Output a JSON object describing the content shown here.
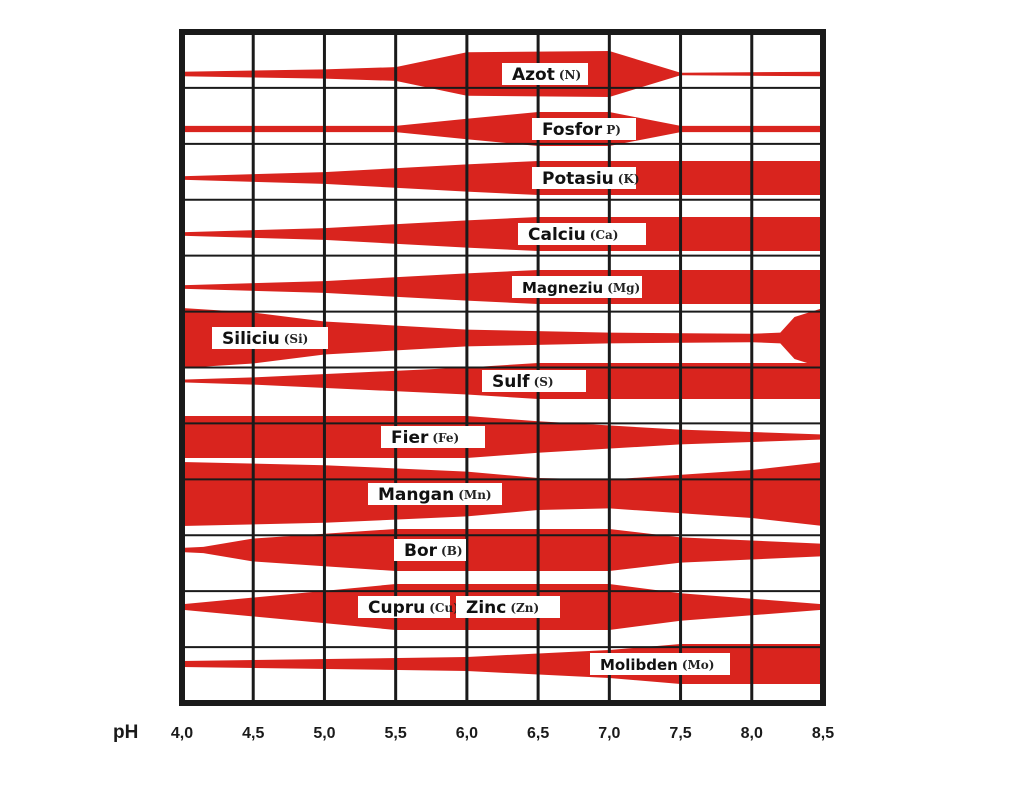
{
  "chart_data": {
    "type": "area",
    "xlabel": "pH",
    "xlim": [
      4.0,
      8.5
    ],
    "ticks": [
      "4,0",
      "4,5",
      "5,0",
      "5,5",
      "6,0",
      "6,5",
      "7,0",
      "7,5",
      "8,0",
      "8,5"
    ],
    "tick_values": [
      4.0,
      4.5,
      5.0,
      5.5,
      6.0,
      6.5,
      7.0,
      7.5,
      8.0,
      8.5
    ],
    "grid": true,
    "colors": {
      "band": "#d9241e",
      "frame": "#1a1a1a",
      "label_bg": "#ffffff"
    },
    "nutrients": [
      {
        "name": "Azot",
        "symbol": "(N)",
        "profile": [
          [
            4.0,
            0.1
          ],
          [
            5.0,
            0.2
          ],
          [
            5.5,
            0.3
          ],
          [
            6.0,
            0.95
          ],
          [
            7.0,
            1.0
          ],
          [
            7.5,
            0.05
          ],
          [
            8.5,
            0.1
          ]
        ]
      },
      {
        "name": "Fosfor",
        "symbol": "P)",
        "profile": [
          [
            4.0,
            0.18
          ],
          [
            5.5,
            0.18
          ],
          [
            6.0,
            0.6
          ],
          [
            6.5,
            1.0
          ],
          [
            7.0,
            1.0
          ],
          [
            7.5,
            0.18
          ],
          [
            8.5,
            0.18
          ]
        ]
      },
      {
        "name": "Potasiu",
        "symbol": "(K)",
        "profile": [
          [
            4.0,
            0.1
          ],
          [
            5.0,
            0.35
          ],
          [
            6.0,
            0.8
          ],
          [
            6.5,
            1.0
          ],
          [
            8.5,
            1.0
          ]
        ]
      },
      {
        "name": "Calciu",
        "symbol": "(Ca)",
        "profile": [
          [
            4.0,
            0.1
          ],
          [
            5.0,
            0.35
          ],
          [
            6.0,
            0.8
          ],
          [
            6.5,
            1.0
          ],
          [
            8.5,
            1.0
          ]
        ]
      },
      {
        "name": "Magneziu",
        "symbol": "(Mg)",
        "profile": [
          [
            4.0,
            0.1
          ],
          [
            5.0,
            0.35
          ],
          [
            6.0,
            0.8
          ],
          [
            6.5,
            1.0
          ],
          [
            8.5,
            1.0
          ]
        ]
      },
      {
        "name": "Siliciu",
        "symbol": "(Si)",
        "profile": [
          [
            4.0,
            1.0
          ],
          [
            4.5,
            0.85
          ],
          [
            5.0,
            0.55
          ],
          [
            6.0,
            0.28
          ],
          [
            7.0,
            0.18
          ],
          [
            8.0,
            0.14
          ],
          [
            8.2,
            0.18
          ],
          [
            8.3,
            0.7
          ],
          [
            8.5,
            1.0
          ]
        ]
      },
      {
        "name": "Sulf",
        "symbol": "(S)",
        "profile": [
          [
            4.0,
            0.08
          ],
          [
            4.5,
            0.2
          ],
          [
            6.0,
            0.75
          ],
          [
            6.5,
            1.0
          ],
          [
            8.5,
            1.0
          ]
        ]
      },
      {
        "name": "Fier",
        "symbol": "(Fe)",
        "profile": [
          [
            4.0,
            1.0
          ],
          [
            6.0,
            1.0
          ],
          [
            6.5,
            0.75
          ],
          [
            7.5,
            0.35
          ],
          [
            8.5,
            0.12
          ]
        ]
      },
      {
        "name": "Mangan",
        "symbol": "(Mn)",
        "profile": [
          [
            4.0,
            1.0
          ],
          [
            5.0,
            0.9
          ],
          [
            6.0,
            0.7
          ],
          [
            6.5,
            0.5
          ],
          [
            7.0,
            0.45
          ],
          [
            8.0,
            0.75
          ],
          [
            8.5,
            1.0
          ]
        ]
      },
      {
        "name": "Bor",
        "symbol": "(B)",
        "profile": [
          [
            4.0,
            0.1
          ],
          [
            4.15,
            0.15
          ],
          [
            4.5,
            0.55
          ],
          [
            5.5,
            1.0
          ],
          [
            7.0,
            1.0
          ],
          [
            7.5,
            0.6
          ],
          [
            8.5,
            0.3
          ]
        ]
      },
      {
        "name": "Cupru",
        "symbol": "(Cu)",
        "profile": [
          [
            4.0,
            0.12
          ],
          [
            5.0,
            0.7
          ],
          [
            5.5,
            1.0
          ],
          [
            7.0,
            1.0
          ],
          [
            7.5,
            0.6
          ],
          [
            8.5,
            0.12
          ]
        ]
      },
      {
        "name": "Zinc",
        "symbol": "(Zn)"
      },
      {
        "name": "Molibden",
        "symbol": "(Mo)",
        "profile": [
          [
            4.0,
            0.15
          ],
          [
            6.0,
            0.35
          ],
          [
            7.0,
            0.7
          ],
          [
            7.5,
            1.0
          ],
          [
            8.5,
            1.0
          ]
        ]
      }
    ]
  }
}
